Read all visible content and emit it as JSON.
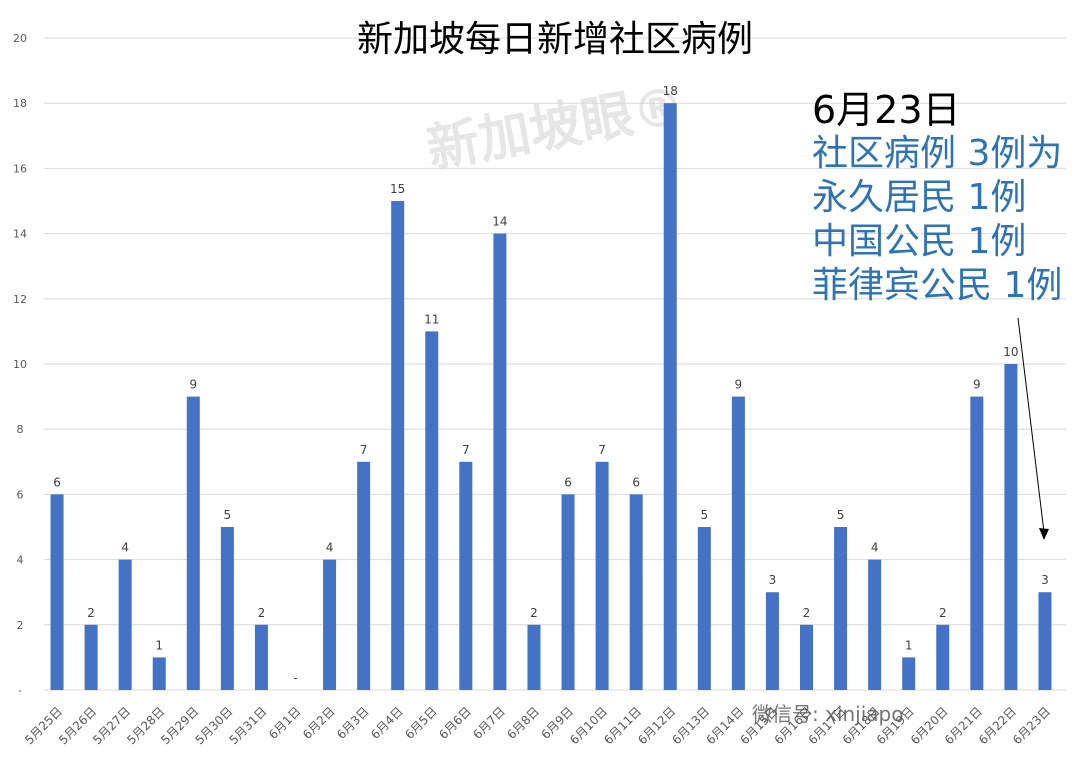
{
  "chart_data": {
    "type": "bar",
    "title": "新加坡每日新增社区病例",
    "categories": [
      "5月25日",
      "5月26日",
      "5月27日",
      "5月28日",
      "5月29日",
      "5月30日",
      "5月31日",
      "6月1日",
      "6月2日",
      "6月3日",
      "6月4日",
      "6月5日",
      "6月6日",
      "6月7日",
      "6月8日",
      "6月9日",
      "6月10日",
      "6月11日",
      "6月12日",
      "6月13日",
      "6月14日",
      "6月15日",
      "6月16日",
      "6月17日",
      "6月18日",
      "6月19日",
      "6月20日",
      "6月21日",
      "6月22日",
      "6月23日"
    ],
    "values": [
      6,
      2,
      4,
      1,
      9,
      5,
      2,
      0,
      4,
      7,
      15,
      11,
      7,
      14,
      2,
      6,
      7,
      6,
      18,
      5,
      9,
      3,
      2,
      5,
      4,
      1,
      2,
      9,
      10,
      3
    ],
    "data_labels": [
      "6",
      "2",
      "4",
      "1",
      "9",
      "5",
      "2",
      "-",
      "4",
      "7",
      "15",
      "11",
      "7",
      "14",
      "2",
      "6",
      "7",
      "6",
      "18",
      "5",
      "9",
      "3",
      "2",
      "5",
      "4",
      "1",
      "2",
      "9",
      "10",
      "3"
    ],
    "yticks": [
      "-",
      "2",
      "4",
      "6",
      "8",
      "10",
      "12",
      "14",
      "16",
      "18",
      "20"
    ],
    "ylim": [
      0,
      20
    ],
    "grid": true,
    "bar_color": "#4472c4"
  },
  "annotation": {
    "date": "6月23日",
    "lines": [
      "社区病例 3例为",
      "永久居民 1例",
      "中国公民 1例",
      "菲律宾公民 1例"
    ],
    "text_color": "#2e74b5"
  },
  "watermark": {
    "brand": "新加坡眼®",
    "wechat": "微信号: xinjiapo"
  }
}
